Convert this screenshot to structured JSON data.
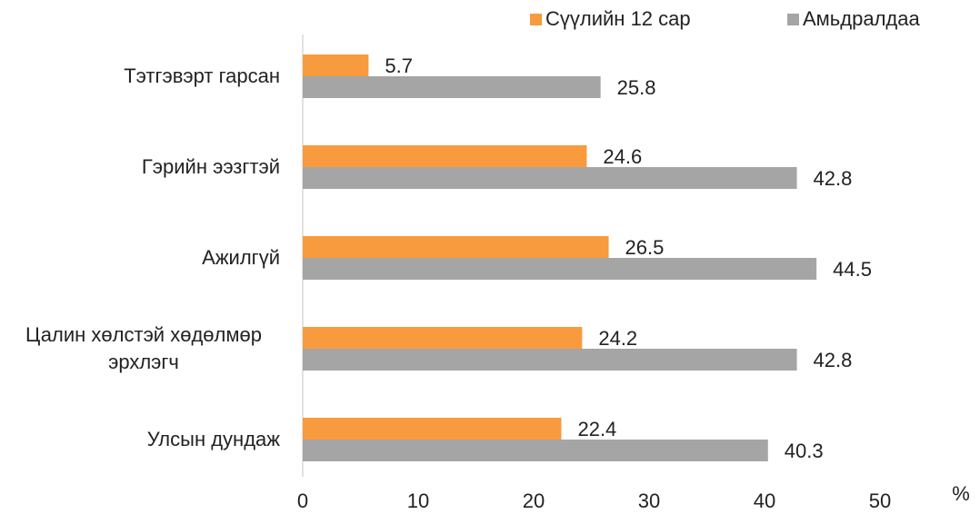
{
  "chart_data": {
    "type": "bar",
    "orientation": "horizontal",
    "categories": [
      "Тэтгэвэрт гарсан",
      "Гэрийн ээзгтэй",
      "Ажилгүй",
      "Цалин хөлстэй хөдөлмөр эрхлэгч",
      "Улсын дундаж"
    ],
    "series": [
      {
        "name": "Сүүлийн 12 сар",
        "color": "#f79b3e",
        "values": [
          5.7,
          24.6,
          26.5,
          24.2,
          22.4
        ]
      },
      {
        "name": "Амьдралдаа",
        "color": "#a5a5a5",
        "values": [
          25.8,
          42.8,
          44.5,
          42.8,
          40.3
        ]
      }
    ],
    "xlim": [
      0,
      50
    ],
    "xticks": [
      0,
      10,
      20,
      30,
      40,
      50
    ],
    "x_label": "%",
    "legend": "top"
  }
}
